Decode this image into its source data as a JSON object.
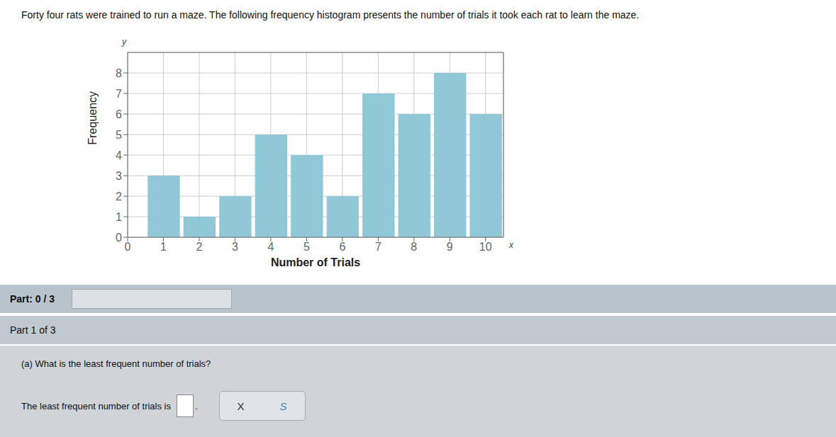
{
  "chart_data": {
    "type": "bar",
    "title": "Forty four rats were trained to run a maze. The following frequency histogram presents the number of trials it took each rat to learn the maze.",
    "xlabel": "Number of Trials",
    "ylabel": "Frequency",
    "x": [
      1,
      2,
      3,
      4,
      5,
      6,
      7,
      8,
      9,
      10
    ],
    "values": [
      3,
      1,
      2,
      5,
      4,
      2,
      7,
      6,
      8,
      6
    ],
    "color": "#90c8d8",
    "xlim": [
      0.0,
      10.5
    ],
    "ylim": [
      0,
      9
    ],
    "xticks": [
      0,
      1,
      2,
      3,
      4,
      5,
      6,
      7,
      8,
      9,
      10
    ],
    "yticks": [
      0,
      1,
      2,
      3,
      4,
      5,
      6,
      7,
      8
    ],
    "grid": true,
    "annotations": [
      "y",
      "x",
      "Part: 0 / 3",
      "Part 1 of 3",
      "(a) What is the least frequent number of trials?",
      "The least frequent number of trials is",
      ".",
      "X",
      "S"
    ]
  }
}
